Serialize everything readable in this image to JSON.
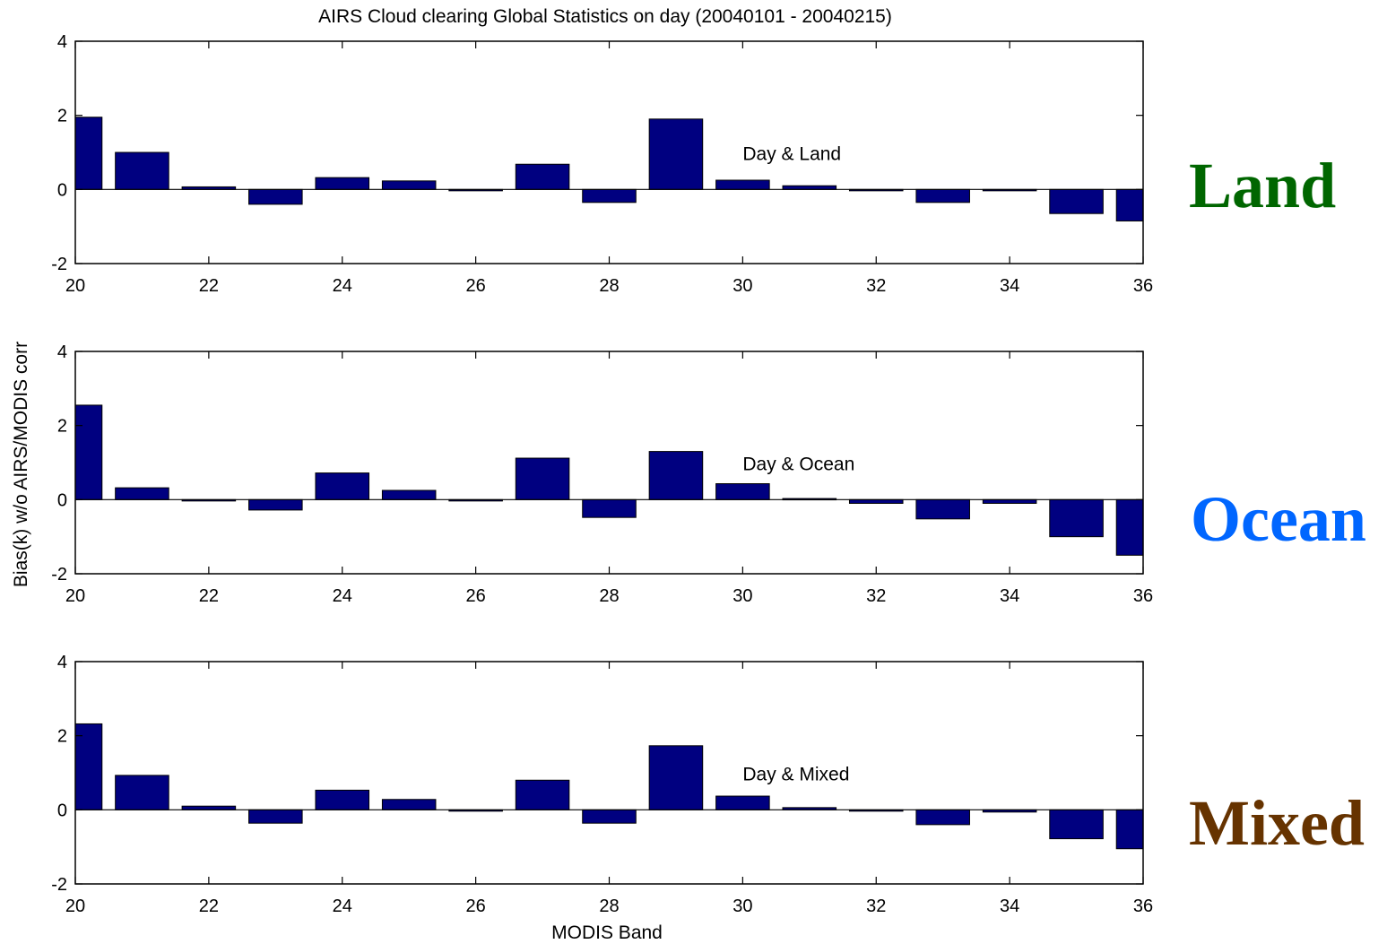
{
  "figure": {
    "title": "AIRS Cloud clearing Global Statistics on day (20040101 - 20040215)",
    "ylabel": "Bias(k) w/o AIRS/MODIS corr",
    "xlabel": "MODIS Band"
  },
  "side_labels": [
    {
      "text": "Land",
      "color": "#006600"
    },
    {
      "text": "Ocean",
      "color": "#0066ff"
    },
    {
      "text": "Mixed",
      "color": "#663300"
    }
  ],
  "chart_data": [
    {
      "type": "bar",
      "annotation": "Day & Land",
      "x": [
        20,
        21,
        22,
        23,
        24,
        25,
        26,
        27,
        28,
        29,
        30,
        31,
        32,
        33,
        34,
        35,
        36
      ],
      "values": [
        1.95,
        1.0,
        0.07,
        -0.4,
        0.32,
        0.23,
        0.0,
        0.68,
        -0.35,
        1.9,
        0.25,
        0.1,
        -0.03,
        -0.35,
        -0.02,
        -0.65,
        -0.85
      ],
      "xlim": [
        20,
        36
      ],
      "ylim": [
        -2,
        4
      ],
      "xticks": [
        20,
        22,
        24,
        26,
        28,
        30,
        32,
        34,
        36
      ],
      "yticks": [
        -2,
        0,
        2,
        4
      ],
      "bar_color": "#000080"
    },
    {
      "type": "bar",
      "annotation": "Day & Ocean",
      "x": [
        20,
        21,
        22,
        23,
        24,
        25,
        26,
        27,
        28,
        29,
        30,
        31,
        32,
        33,
        34,
        35,
        36
      ],
      "values": [
        2.55,
        0.32,
        0.0,
        -0.28,
        0.72,
        0.25,
        0.0,
        1.12,
        -0.48,
        1.3,
        0.43,
        0.03,
        -0.1,
        -0.52,
        -0.1,
        -1.0,
        -1.5
      ],
      "xlim": [
        20,
        36
      ],
      "ylim": [
        -2,
        4
      ],
      "xticks": [
        20,
        22,
        24,
        26,
        28,
        30,
        32,
        34,
        36
      ],
      "yticks": [
        -2,
        0,
        2,
        4
      ],
      "bar_color": "#000080"
    },
    {
      "type": "bar",
      "annotation": "Day & Mixed",
      "x": [
        20,
        21,
        22,
        23,
        24,
        25,
        26,
        27,
        28,
        29,
        30,
        31,
        32,
        33,
        34,
        35,
        36
      ],
      "values": [
        2.32,
        0.93,
        0.1,
        -0.36,
        0.53,
        0.28,
        0.0,
        0.8,
        -0.36,
        1.73,
        0.37,
        0.06,
        -0.03,
        -0.4,
        -0.06,
        -0.78,
        -1.05
      ],
      "xlim": [
        20,
        36
      ],
      "ylim": [
        -2,
        4
      ],
      "xticks": [
        20,
        22,
        24,
        26,
        28,
        30,
        32,
        34,
        36
      ],
      "yticks": [
        -2,
        0,
        2,
        4
      ],
      "bar_color": "#000080"
    }
  ]
}
